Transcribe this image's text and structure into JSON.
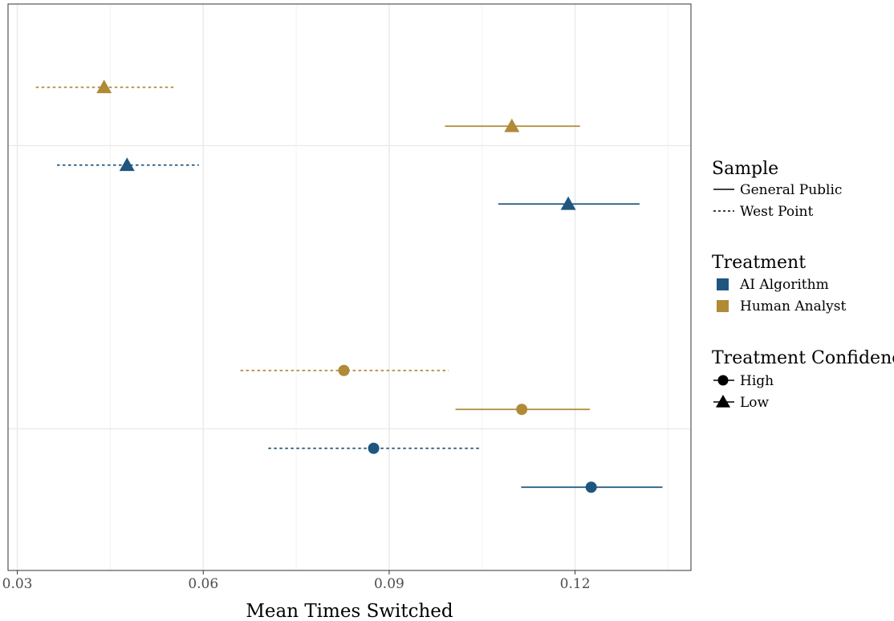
{
  "chart_data": {
    "type": "scatter",
    "subtype": "point-range (dot-and-whisker)",
    "xlabel": "Mean Times Switched",
    "xlim": [
      0.0285,
      0.1387
    ],
    "x_ticks": [
      {
        "value": 0.03,
        "label": "0.03"
      },
      {
        "value": 0.06,
        "label": "0.06"
      },
      {
        "value": 0.09,
        "label": "0.09"
      },
      {
        "value": 0.12,
        "label": "0.12"
      }
    ],
    "grid": true,
    "legend_position": "right",
    "colors": {
      "AI Algorithm": "#1f567e",
      "Human Analyst": "#b08a36"
    },
    "points": [
      {
        "group": "Low",
        "sample": "West Point",
        "treatment": "Human Analyst",
        "confidence": "Low",
        "x": 0.044,
        "lo": 0.033,
        "hi": 0.0552
      },
      {
        "group": "Low",
        "sample": "General Public",
        "treatment": "Human Analyst",
        "confidence": "Low",
        "x": 0.1098,
        "lo": 0.099,
        "hi": 0.1208
      },
      {
        "group": "Low",
        "sample": "West Point",
        "treatment": "AI Algorithm",
        "confidence": "Low",
        "x": 0.0477,
        "lo": 0.0364,
        "hi": 0.0593
      },
      {
        "group": "Low",
        "sample": "General Public",
        "treatment": "AI Algorithm",
        "confidence": "Low",
        "x": 0.1189,
        "lo": 0.1076,
        "hi": 0.1304
      },
      {
        "group": "High",
        "sample": "West Point",
        "treatment": "Human Analyst",
        "confidence": "High",
        "x": 0.0827,
        "lo": 0.066,
        "hi": 0.0996
      },
      {
        "group": "High",
        "sample": "General Public",
        "treatment": "Human Analyst",
        "confidence": "High",
        "x": 0.1114,
        "lo": 0.1007,
        "hi": 0.1224
      },
      {
        "group": "High",
        "sample": "West Point",
        "treatment": "AI Algorithm",
        "confidence": "High",
        "x": 0.0875,
        "lo": 0.0705,
        "hi": 0.1047
      },
      {
        "group": "High",
        "sample": "General Public",
        "treatment": "AI Algorithm",
        "confidence": "High",
        "x": 0.1226,
        "lo": 0.1113,
        "hi": 0.1341
      }
    ],
    "legend": {
      "sample": {
        "title": "Sample",
        "items": [
          {
            "label": "General Public",
            "linetype": "solid"
          },
          {
            "label": "West Point",
            "linetype": "dashed"
          }
        ]
      },
      "treatment": {
        "title": "Treatment",
        "items": [
          {
            "label": "AI Algorithm",
            "color": "#1f567e"
          },
          {
            "label": "Human Analyst",
            "color": "#b08a36"
          }
        ]
      },
      "confidence": {
        "title": "Treatment Confidence",
        "items": [
          {
            "label": "High",
            "shape": "circle"
          },
          {
            "label": "Low",
            "shape": "triangle"
          }
        ]
      }
    }
  }
}
